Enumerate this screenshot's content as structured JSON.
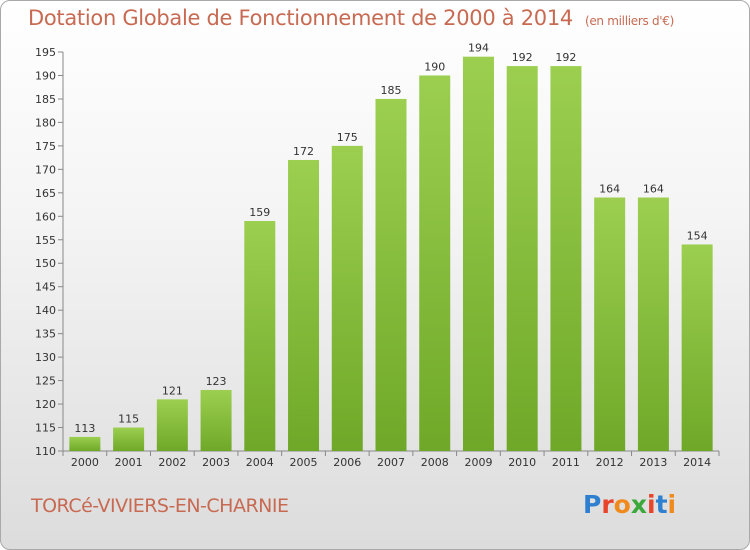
{
  "header": {
    "title": "Dotation Globale de Fonctionnement de 2000 à 2014",
    "unit_note": "(en milliers d'€)"
  },
  "footer": {
    "commune": "TORCé-VIVIERS-EN-CHARNIE",
    "brand_letters": [
      "P",
      "r",
      "o",
      "x",
      "i",
      "t",
      "i"
    ],
    "brand_colors": [
      "#2e7fd0",
      "#e8442c",
      "#f08a1c",
      "#3aa83a",
      "#e8442c",
      "#2e7fd0",
      "#f08a1c"
    ]
  },
  "chart_data": {
    "type": "bar",
    "categories": [
      "2000",
      "2001",
      "2002",
      "2003",
      "2004",
      "2005",
      "2006",
      "2007",
      "2008",
      "2009",
      "2010",
      "2011",
      "2012",
      "2013",
      "2014"
    ],
    "values": [
      113,
      115,
      121,
      123,
      159,
      172,
      175,
      185,
      190,
      194,
      192,
      192,
      164,
      164,
      154
    ],
    "ylim": [
      110,
      195
    ],
    "yticks": [
      110,
      115,
      120,
      125,
      130,
      135,
      140,
      145,
      150,
      155,
      160,
      165,
      170,
      175,
      180,
      185,
      190,
      195
    ],
    "grid": false,
    "bar_color_top": "#9ccf50",
    "bar_color_bottom": "#6fa828"
  }
}
